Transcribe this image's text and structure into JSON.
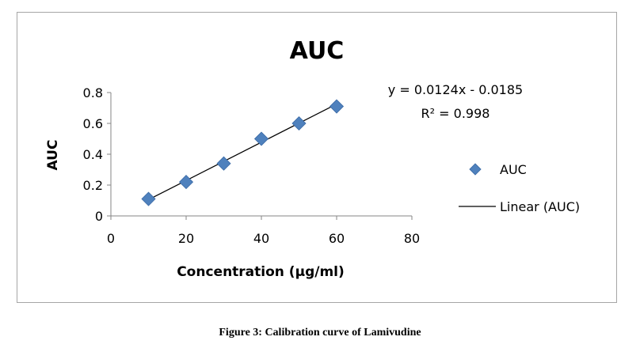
{
  "chart_data": {
    "type": "scatter",
    "title": "AUC",
    "xlabel": "Concentration (µg/ml)",
    "ylabel": "AUC",
    "xlim": [
      0,
      80
    ],
    "ylim": [
      0,
      0.8
    ],
    "xticks": [
      0,
      20,
      40,
      60,
      80
    ],
    "yticks": [
      0,
      0.2,
      0.4,
      0.6,
      0.8
    ],
    "xtick_labels": [
      "0",
      "20",
      "40",
      "60",
      "80"
    ],
    "ytick_labels": [
      "0",
      "0.2",
      "0.4",
      "0.6",
      "0.8"
    ],
    "grid": false,
    "legend_position": "right",
    "series": [
      {
        "name": "AUC",
        "marker": "diamond",
        "color": "#4f81bd",
        "x": [
          10,
          20,
          30,
          40,
          50,
          60
        ],
        "y": [
          0.11,
          0.22,
          0.34,
          0.5,
          0.6,
          0.71
        ]
      }
    ],
    "trendline": {
      "name": "Linear (AUC)",
      "slope": 0.0124,
      "intercept": -0.0185,
      "x_range": [
        10,
        60
      ],
      "color": "#000000"
    },
    "equation_text": "y = 0.0124x - 0.0185",
    "r2_text": "R² = 0.998"
  },
  "caption": "Figure 3: Calibration curve of Lamivudine"
}
